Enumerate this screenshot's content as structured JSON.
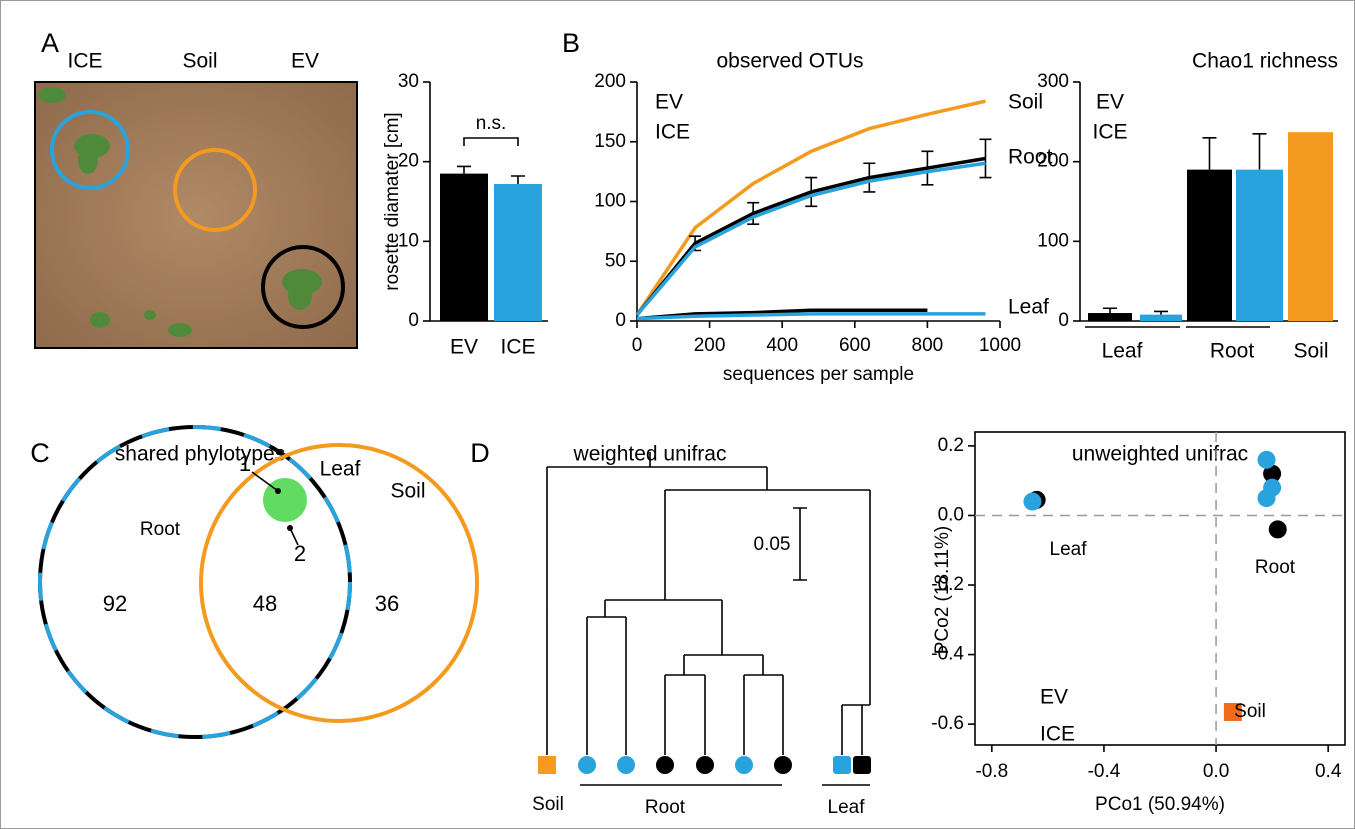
{
  "chart_data": [
    {
      "type": "photo",
      "panel": "A",
      "labels": [
        {
          "text": "ICE",
          "color": "#29a3dd"
        },
        {
          "text": "Soil",
          "color": "#f39a1f"
        },
        {
          "text": "EV",
          "color": "#000000"
        }
      ]
    },
    {
      "type": "bar",
      "ylabel": "rosette diamater [cm]",
      "categories": [
        "EV",
        "ICE"
      ],
      "category_colors": [
        "#000000",
        "#29a3dd"
      ],
      "values": [
        18.5,
        17.2
      ],
      "errors": [
        0.9,
        1.0
      ],
      "colors": [
        "#000000",
        "#29a3dd"
      ],
      "ylim": [
        0,
        30
      ],
      "yticks": [
        0,
        10,
        20,
        30
      ],
      "annotation": "n.s."
    },
    {
      "type": "line",
      "panel": "B",
      "title": "observed OTUs",
      "xlabel": "sequences per sample",
      "x": [
        0,
        160,
        320,
        480,
        640,
        800,
        960
      ],
      "xlim": [
        0,
        1000
      ],
      "xticks": [
        0,
        200,
        400,
        600,
        800,
        1000
      ],
      "ylim": [
        0,
        200
      ],
      "yticks": [
        0,
        50,
        100,
        150,
        200
      ],
      "legend": [
        {
          "text": "EV",
          "color": "#000000"
        },
        {
          "text": "ICE",
          "color": "#29a3dd"
        }
      ],
      "series": [
        {
          "name": "Soil",
          "color": "#f39a1f",
          "label_color": "#f39a1f",
          "values": [
            5,
            78,
            115,
            142,
            161,
            173,
            184
          ]
        },
        {
          "name": "Root",
          "color": "#000000",
          "label_color": "#000000",
          "values": [
            5,
            65,
            90,
            108,
            120,
            128,
            136
          ],
          "errors": [
            null,
            6,
            9,
            12,
            12,
            14,
            16
          ]
        },
        {
          "color": "#29a3dd",
          "values": [
            5,
            62,
            87,
            105,
            117,
            125,
            132
          ]
        },
        {
          "name": "Leaf",
          "color": "#000000",
          "label_color": "#3bd23b",
          "values": [
            2,
            6,
            7,
            9,
            9,
            9,
            null
          ]
        },
        {
          "color": "#29a3dd",
          "values": [
            2,
            4,
            5,
            6,
            6,
            6,
            6
          ]
        }
      ]
    },
    {
      "type": "bar",
      "title": "Chao1 richness",
      "values": [
        10,
        8,
        190,
        190,
        237
      ],
      "errors": [
        6,
        4,
        40,
        45,
        null
      ],
      "colors": [
        "#000000",
        "#29a3dd",
        "#000000",
        "#29a3dd",
        "#f39a1f"
      ],
      "ylim": [
        0,
        300
      ],
      "yticks": [
        0,
        100,
        200,
        300
      ],
      "legend": [
        {
          "text": "EV",
          "color": "#000000"
        },
        {
          "text": "ICE",
          "color": "#29a3dd"
        }
      ],
      "groups": [
        {
          "text": "Leaf",
          "color": "#3bd23b"
        },
        {
          "text": "Root",
          "color": "#000000"
        },
        {
          "text": "Soil",
          "color": "#f39a1f"
        }
      ]
    },
    {
      "type": "venn",
      "panel": "C",
      "title": "shared phylotypes",
      "sets": [
        {
          "name": "Root",
          "colors": [
            "#000000",
            "#29a3dd"
          ]
        },
        {
          "name": "Soil",
          "colors": [
            "#f39a1f"
          ]
        },
        {
          "name": "Leaf",
          "colors": [
            "#3bd23b"
          ]
        }
      ],
      "counts": [
        92,
        48,
        36,
        1,
        2
      ]
    },
    {
      "type": "dendrogram",
      "panel": "D",
      "title": "weighted unifrac",
      "scale_label": "0.05",
      "leaves": [
        {
          "shape": "square",
          "color": "#f39a1f"
        },
        {
          "shape": "circle",
          "color": "#29a3dd"
        },
        {
          "shape": "circle",
          "color": "#29a3dd"
        },
        {
          "shape": "circle",
          "color": "#000000"
        },
        {
          "shape": "circle",
          "color": "#000000"
        },
        {
          "shape": "circle",
          "color": "#29a3dd"
        },
        {
          "shape": "circle",
          "color": "#000000"
        },
        {
          "shape": "square",
          "color": "#29a3dd"
        },
        {
          "shape": "square",
          "color": "#000000"
        }
      ],
      "groups": [
        {
          "text": "Soil",
          "color": "#f39a1f"
        },
        {
          "text": "Root",
          "color": "#000000"
        },
        {
          "text": "Leaf",
          "color": "#3bd23b"
        }
      ]
    },
    {
      "type": "scatter",
      "title": "unweighted unifrac",
      "xlabel": "PCo1 (50.94%)",
      "ylabel": "PCo2 (18.11%)",
      "xlim": [
        -0.86,
        0.46
      ],
      "ylim": [
        -0.66,
        0.24
      ],
      "xticks": [
        -0.8,
        -0.4,
        {
          "value": 0,
          "label": "0.0"
        },
        0.4
      ],
      "yticks": [
        -0.6,
        -0.4,
        -0.2,
        {
          "value": 0,
          "label": "0.0"
        },
        0.2
      ],
      "legend": [
        {
          "text": "EV",
          "color": "#000000"
        },
        {
          "text": "ICE",
          "color": "#29a3dd"
        }
      ],
      "series": [
        {
          "color": "#000000",
          "shape": "circle",
          "x": [
            -0.64,
            0.2,
            0.22
          ],
          "values": [
            0.045,
            0.12,
            -0.04
          ]
        },
        {
          "color": "#29a3dd",
          "shape": "circle",
          "x": [
            -0.655,
            0.18,
            0.2,
            0.18
          ],
          "values": [
            0.04,
            0.16,
            0.08,
            0.05
          ]
        },
        {
          "color": "#f26b1d",
          "shape": "square",
          "x": [
            0.06
          ],
          "values": [
            -0.565
          ]
        }
      ],
      "group_labels": [
        {
          "text": "Leaf",
          "color": "#3bd23b"
        },
        {
          "text": "Root",
          "color": "#000000"
        },
        {
          "text": "Soil",
          "color": "#f39a1f"
        }
      ]
    }
  ]
}
